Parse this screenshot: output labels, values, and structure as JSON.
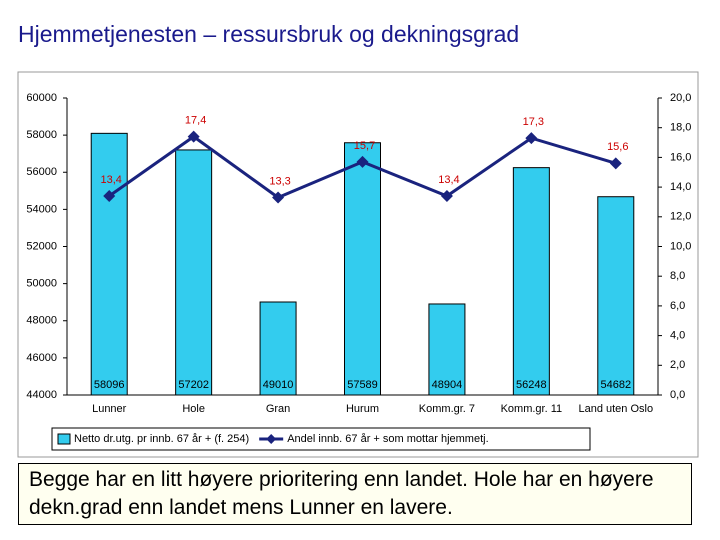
{
  "chart_data": {
    "type": "combo",
    "title": "Hjemmetjenesten – ressursbruk og dekningsgrad",
    "categories": [
      "Lunner",
      "Hole",
      "Gran",
      "Hurum",
      "Komm.gr. 7",
      "Komm.gr. 11",
      "Land uten Oslo"
    ],
    "series": [
      {
        "name": "Netto dr.utg. pr innb. 67 år + (f. 254)",
        "type": "bar",
        "color": "#33ccee",
        "values": [
          58096,
          57202,
          49010,
          57589,
          48904,
          56248,
          54682
        ]
      },
      {
        "name": "Andel innb. 67 år + som mottar hjemmetj.",
        "type": "line",
        "axis": "y2",
        "color": "#1a237e",
        "values": [
          13.4,
          17.4,
          13.3,
          15.7,
          13.4,
          17.3,
          15.6
        ],
        "value_labels": [
          "13,4",
          "17,4",
          "13,3",
          "15,7",
          "13,4",
          "17,3",
          "15,6"
        ],
        "label_color": "#cc0000"
      }
    ],
    "ylim": [
      44000,
      60000
    ],
    "yticks": [
      44000,
      46000,
      48000,
      50000,
      52000,
      54000,
      56000,
      58000,
      60000
    ],
    "y2lim": [
      0,
      20
    ],
    "y2ticks": [
      {
        "value": 0,
        "label": "0,0"
      },
      {
        "value": 2,
        "label": "2,0"
      },
      {
        "value": 4,
        "label": "4,0"
      },
      {
        "value": 6,
        "label": "6,0"
      },
      {
        "value": 8,
        "label": "8,0"
      },
      {
        "value": 10,
        "label": "10,0"
      },
      {
        "value": 12,
        "label": "12,0"
      },
      {
        "value": 14,
        "label": "14,0"
      },
      {
        "value": 16,
        "label": "16,0"
      },
      {
        "value": 18,
        "label": "18,0"
      },
      {
        "value": 20,
        "label": "20,0"
      }
    ],
    "legend": "bottom"
  },
  "textbox": {
    "text": "Begge har en litt høyere prioritering enn landet. Hole har en høyere dekn.grad enn landet mens Lunner en lavere."
  }
}
